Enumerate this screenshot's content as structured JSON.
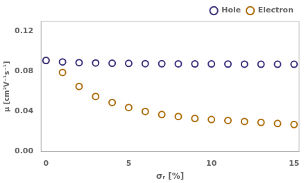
{
  "chart_data": {
    "type": "scatter",
    "x_label": "σᵣ [%]",
    "y_label": "μ [cm²V⁻¹s⁻¹]",
    "x": [
      0,
      1,
      2,
      3,
      4,
      5,
      6,
      7,
      8,
      9,
      10,
      11,
      12,
      13,
      14,
      15
    ],
    "series": [
      {
        "name": "Hole",
        "color": "#3d3580",
        "marker": "circle",
        "values": [
          0.091,
          0.0895,
          0.0888,
          0.0885,
          0.0882,
          0.088,
          0.0878,
          0.0877,
          0.0876,
          0.0875,
          0.0875,
          0.0874,
          0.0873,
          0.0872,
          0.0872,
          0.0872
        ],
        "yerr": [
          0.0012,
          0.001,
          0.0009,
          0.0008,
          0.0007,
          0.0007,
          0.0007,
          0.0007,
          0.0006,
          0.0006,
          0.0006,
          0.0005,
          0.0005,
          0.0005,
          0.0005,
          0.0005
        ]
      },
      {
        "name": "Electron",
        "color": "#b07010",
        "marker": "circle",
        "values": [
          0.091,
          0.079,
          0.065,
          0.055,
          0.049,
          0.044,
          0.04,
          0.037,
          0.035,
          0.033,
          0.032,
          0.031,
          0.03,
          0.029,
          0.028,
          0.027
        ],
        "yerr": [
          0.0012,
          0.001,
          0.001,
          0.001,
          0.001,
          0.001,
          0.001,
          0.0009,
          0.0009,
          0.0009,
          0.0008,
          0.0008,
          0.0008,
          0.0007,
          0.0007,
          0.0007
        ]
      }
    ],
    "xlim": [
      -0.3,
      15.3
    ],
    "xticks": [
      0,
      5,
      10,
      15
    ],
    "ylim": [
      0,
      0.13
    ],
    "yticks": [
      {
        "value": 0,
        "label": "0.00"
      },
      0.04,
      0.08,
      0.12
    ],
    "grid": false,
    "legend": "upper right"
  }
}
